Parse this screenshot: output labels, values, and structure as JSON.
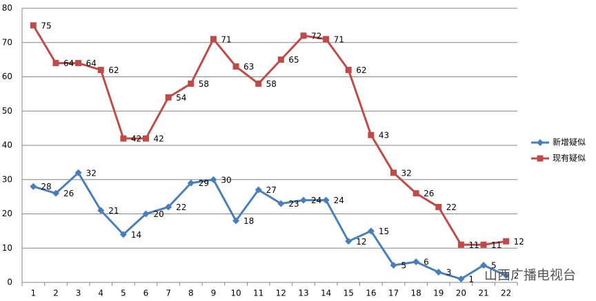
{
  "chart_data": {
    "type": "line",
    "categories": [
      "1",
      "2",
      "3",
      "4",
      "5",
      "6",
      "7",
      "8",
      "9",
      "10",
      "11",
      "12",
      "13",
      "14",
      "15",
      "16",
      "17",
      "18",
      "19",
      "20",
      "21",
      "22"
    ],
    "series": [
      {
        "name": "新增疑似",
        "color": "#4a7ebb",
        "marker": "diamond",
        "values": [
          28,
          26,
          32,
          21,
          14,
          20,
          22,
          29,
          30,
          18,
          27,
          23,
          24,
          24,
          12,
          15,
          5,
          6,
          3,
          1,
          5,
          2
        ]
      },
      {
        "name": "现有疑似",
        "color": "#be4b48",
        "marker": "square",
        "values": [
          75,
          64,
          64,
          62,
          42,
          42,
          54,
          58,
          71,
          63,
          58,
          65,
          72,
          71,
          62,
          43,
          32,
          26,
          22,
          11,
          11,
          12
        ]
      }
    ],
    "ylim": [
      0,
      80
    ],
    "yticks": [
      0,
      10,
      20,
      30,
      40,
      50,
      60,
      70,
      80
    ],
    "grid": true,
    "legend": "right",
    "watermark": "山西广播电视台"
  }
}
